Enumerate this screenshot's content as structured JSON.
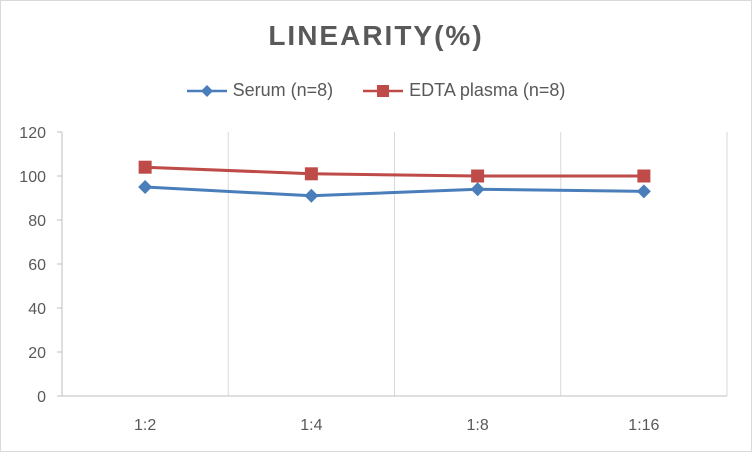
{
  "chart_data": {
    "type": "line",
    "title": "LINEARITY(%)",
    "xlabel": "",
    "ylabel": "",
    "categories": [
      "1:2",
      "1:4",
      "1:8",
      "1:16"
    ],
    "ylim": [
      0,
      120
    ],
    "yticks": [
      0,
      20,
      40,
      60,
      80,
      100,
      120
    ],
    "grid": "vertical",
    "legend_position": "top",
    "series": [
      {
        "name": "Serum (n=8)",
        "values": [
          95,
          91,
          94,
          93
        ],
        "color": "#4a7ebb",
        "marker": "diamond"
      },
      {
        "name": "EDTA plasma (n=8)",
        "values": [
          104,
          101,
          100,
          100
        ],
        "color": "#be4b48",
        "marker": "square"
      }
    ]
  }
}
